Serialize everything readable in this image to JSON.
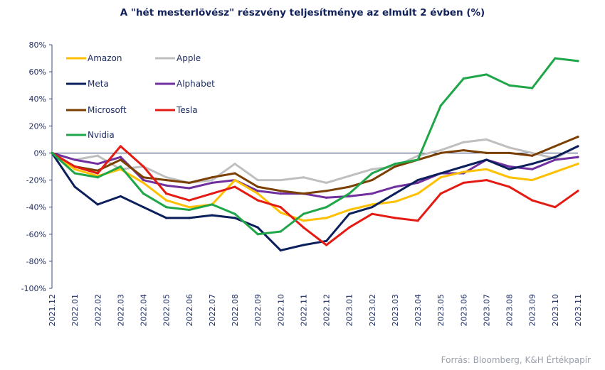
{
  "title": "A \"hét mesterlövész\" részvény teljesítménye  az elmúlt 2 évben (%)",
  "source": "Forrás: Bloomberg, K&H Értékpapír",
  "chart_data": {
    "type": "line",
    "x_labels": [
      "2021.12",
      "2022.01",
      "2022.02",
      "2022.03",
      "2022.04",
      "2022.05",
      "2022.06",
      "2022.07",
      "2022.08",
      "2022.09",
      "2022.10",
      "2022.11",
      "2022.12",
      "2023.01",
      "2023.02",
      "2023.03",
      "2023.04",
      "2023.05",
      "2023.06",
      "2023.07",
      "2023.08",
      "2023.09",
      "2023.10",
      "2023.11"
    ],
    "y_ticks": [
      "-100%",
      "-80%",
      "-60%",
      "-40%",
      "-20%",
      "0%",
      "20%",
      "40%",
      "60%",
      "80%"
    ],
    "ylim": [
      -100,
      80
    ],
    "grid": false,
    "legend_position": "top-left",
    "series": [
      {
        "name": "Amazon",
        "color": "#ffc000",
        "values": [
          0,
          -12,
          -17,
          -12,
          -22,
          -35,
          -40,
          -38,
          -20,
          -30,
          -44,
          -50,
          -48,
          -42,
          -38,
          -36,
          -30,
          -18,
          -14,
          -12,
          -18,
          -20,
          -14,
          -8
        ]
      },
      {
        "name": "Apple",
        "color": "#bfbfbf",
        "values": [
          0,
          -5,
          -2,
          -12,
          -10,
          -18,
          -22,
          -20,
          -8,
          -20,
          -20,
          -18,
          -22,
          -17,
          -12,
          -10,
          -2,
          2,
          8,
          10,
          4,
          0,
          -4,
          5
        ]
      },
      {
        "name": "Meta",
        "color": "#0b1f5c",
        "values": [
          0,
          -25,
          -38,
          -32,
          -40,
          -48,
          -48,
          -46,
          -48,
          -55,
          -72,
          -68,
          -65,
          -45,
          -40,
          -30,
          -20,
          -15,
          -10,
          -5,
          -12,
          -8,
          -3,
          5
        ]
      },
      {
        "name": "Alphabet",
        "color": "#7030a0",
        "values": [
          0,
          -5,
          -8,
          -3,
          -20,
          -24,
          -26,
          -22,
          -20,
          -28,
          -30,
          -30,
          -33,
          -32,
          -30,
          -25,
          -22,
          -15,
          -15,
          -5,
          -10,
          -12,
          -5,
          -3
        ]
      },
      {
        "name": "Microsoft",
        "color": "#7b3f00",
        "values": [
          0,
          -10,
          -13,
          -5,
          -18,
          -20,
          -22,
          -18,
          -15,
          -25,
          -28,
          -30,
          -28,
          -25,
          -20,
          -10,
          -5,
          0,
          2,
          0,
          0,
          -2,
          5,
          12
        ]
      },
      {
        "name": "Tesla",
        "color": "#e41b13",
        "values": [
          0,
          -10,
          -15,
          5,
          -10,
          -30,
          -35,
          -30,
          -25,
          -35,
          -40,
          -55,
          -68,
          -55,
          -45,
          -48,
          -50,
          -30,
          -22,
          -20,
          -25,
          -35,
          -40,
          -28
        ]
      },
      {
        "name": "Nvidia",
        "color": "#1fa648",
        "values": [
          0,
          -15,
          -18,
          -10,
          -30,
          -40,
          -42,
          -38,
          -45,
          -60,
          -58,
          -45,
          -40,
          -30,
          -15,
          -8,
          -5,
          35,
          55,
          58,
          50,
          48,
          70,
          68
        ]
      }
    ]
  }
}
